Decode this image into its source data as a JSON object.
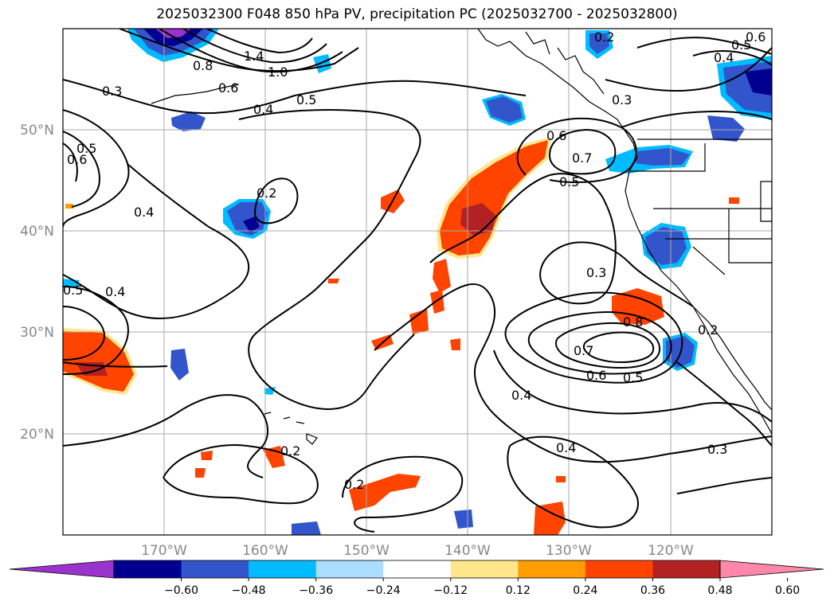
{
  "title": "2025032300 F048 850 hPa PV, precipitation PC (2025032700 - 2025032800)",
  "map": {
    "lat_labels": [
      "50°N",
      "40°N",
      "30°N",
      "20°N"
    ],
    "lon_labels": [
      "170°W",
      "160°W",
      "150°W",
      "140°W",
      "130°W",
      "120°W"
    ],
    "contour_labels": [
      "0.3",
      "0.8",
      "0.6",
      "1.4",
      "1.0",
      "0.4",
      "0.5",
      "0.5",
      "0.6",
      "0.2",
      "0.4",
      "0.5",
      "0.4",
      "0.6",
      "0.7",
      "0.5",
      "0.3",
      "0.3",
      "0.8",
      "0.7",
      "0.6",
      "0.5",
      "0.4",
      "0.4",
      "0.2",
      "0.2",
      "0.3",
      "0.2",
      "0.4",
      "0.5",
      "0.6",
      "0.2"
    ],
    "grid": true
  },
  "colorbar": {
    "ticks": [
      "−0.60",
      "−0.48",
      "−0.36",
      "−0.24",
      "−0.12",
      "0.12",
      "0.24",
      "0.36",
      "0.48",
      "0.60"
    ],
    "colors": [
      "#9933cc",
      "#000090",
      "#3355cc",
      "#00bbff",
      "#aaddff",
      "#ffffff",
      "#ffe68a",
      "#ff9c00",
      "#ff4400",
      "#b22222",
      "#ff88aa"
    ]
  }
}
